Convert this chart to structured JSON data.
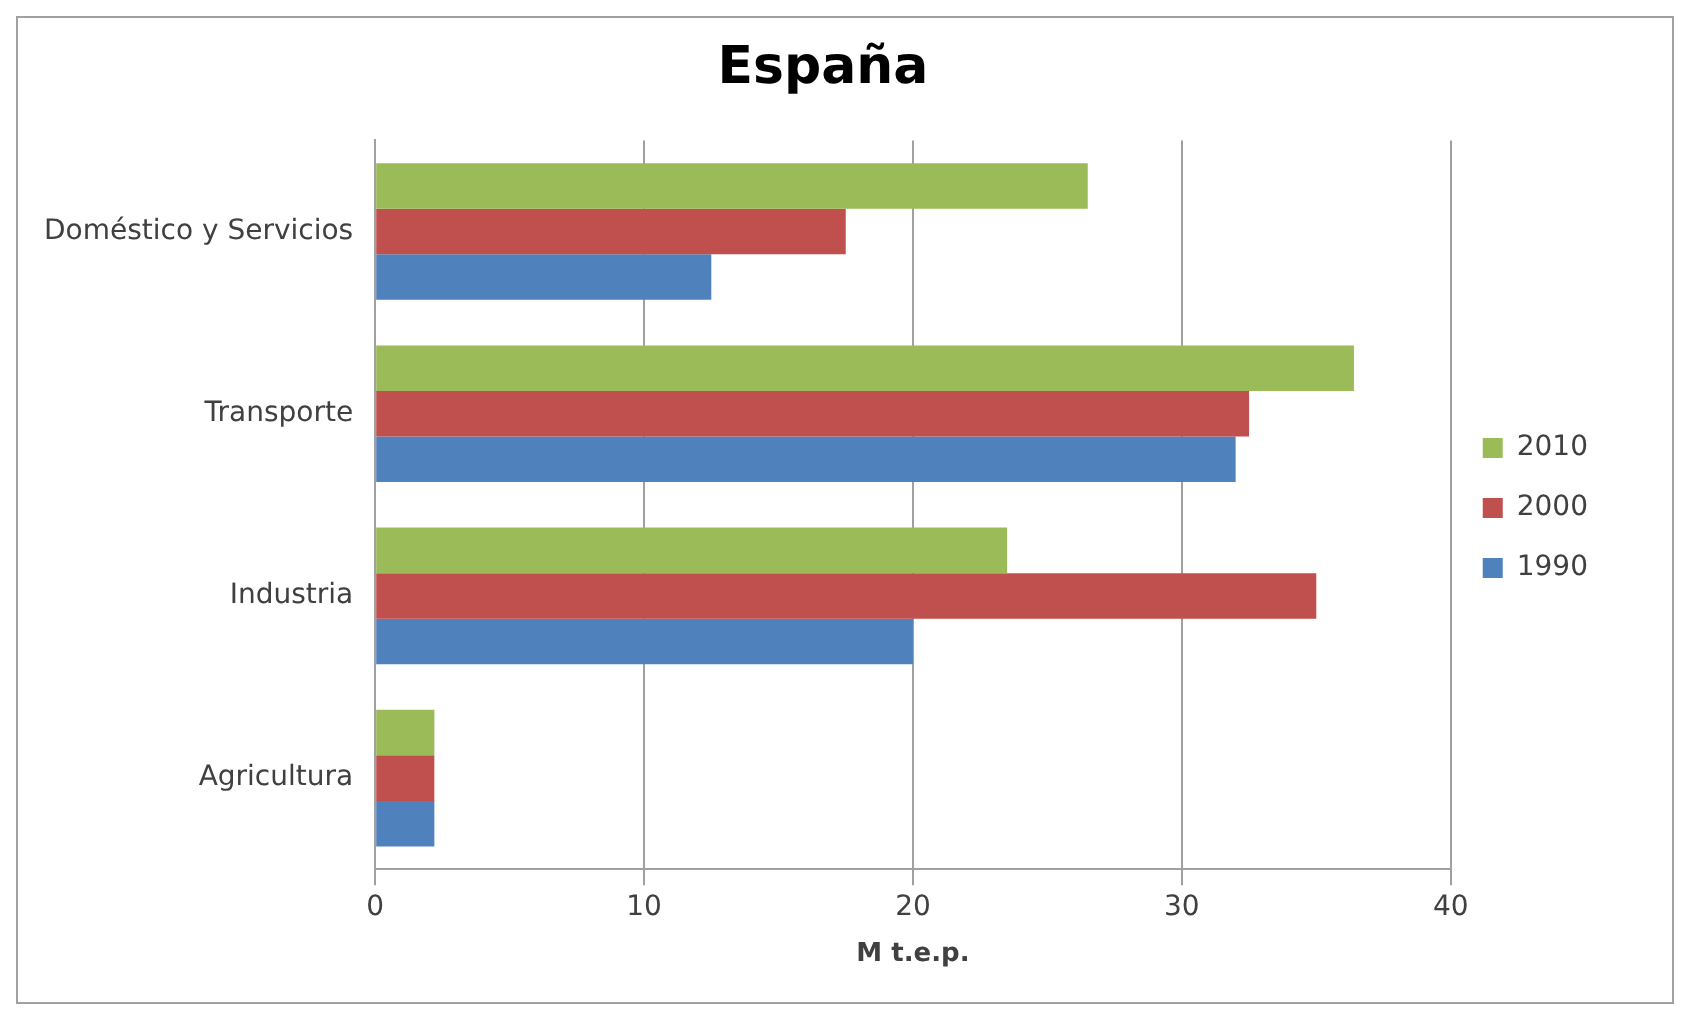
{
  "chart_data": {
    "type": "bar",
    "orientation": "horizontal",
    "title": "España",
    "xlabel": "M t.e.p.",
    "categories": [
      "Doméstico y Servicios",
      "Transporte",
      "Industria",
      "Agricultura"
    ],
    "series": [
      {
        "name": "2010",
        "color": "#9bbb59",
        "values": [
          26.5,
          36.4,
          23.5,
          2.2
        ]
      },
      {
        "name": "2000",
        "color": "#c0504d",
        "values": [
          17.5,
          32.5,
          35,
          2.2
        ]
      },
      {
        "name": "1990",
        "color": "#4f81bd",
        "values": [
          12.5,
          32,
          20,
          2.2
        ]
      }
    ],
    "xlim": [
      0,
      40
    ],
    "xticks": [
      0,
      10,
      20,
      30,
      40
    ],
    "grid": "x",
    "legend": "right"
  }
}
